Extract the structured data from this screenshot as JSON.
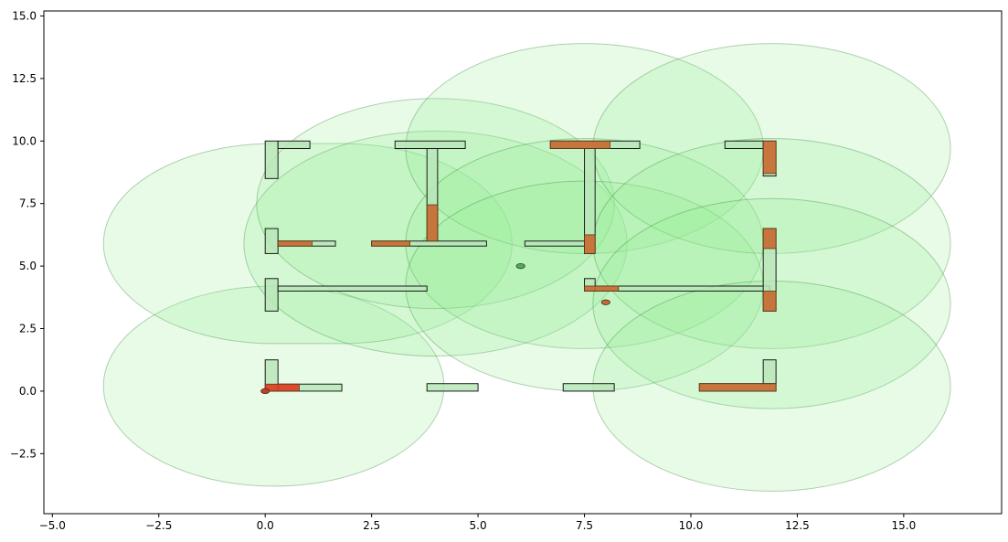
{
  "chart_data": {
    "type": "scatter",
    "title": "",
    "xlabel": "",
    "ylabel": "",
    "xlim": [
      -5.2,
      17.3
    ],
    "ylim": [
      -4.9,
      15.2
    ],
    "grid": false,
    "x_ticks": [
      -5.0,
      -2.5,
      0.0,
      2.5,
      5.0,
      7.5,
      10.0,
      12.5,
      15.0
    ],
    "y_ticks": [
      -2.5,
      0.0,
      2.5,
      5.0,
      7.5,
      10.0,
      12.5,
      15.0
    ],
    "x_tick_labels": [
      "−5.0",
      "−2.5",
      "0.0",
      "2.5",
      "5.0",
      "7.5",
      "10.0",
      "12.5",
      "15.0"
    ],
    "y_tick_labels": [
      "−2.5",
      "0.0",
      "2.5",
      "5.0",
      "7.5",
      "10.0",
      "12.5",
      "15.0"
    ],
    "colors": {
      "region_fill": "#90ee90",
      "region_stroke": "#2e7d32",
      "wall_fill": "#b8e6b8",
      "wall_stroke": "#1a1a1a",
      "hit_fill": "#c8692f",
      "hit_strong": "#e03a1e",
      "point_green": "#4caf50",
      "point_orange": "#c8692f",
      "point_red": "#d0391d"
    },
    "regions": [
      {
        "x0": 0.2,
        "x1": 0.2,
        "y0": 0.2,
        "y1": 0.2,
        "r": 4.0,
        "alpha": 0.22
      },
      {
        "x0": 0.2,
        "x1": 1.8,
        "y0": 5.9,
        "y1": 5.9,
        "r": 4.0,
        "alpha": 0.22
      },
      {
        "x0": 4.0,
        "x1": 4.0,
        "y0": 5.9,
        "y1": 5.9,
        "r": 4.5,
        "alpha": 0.22
      },
      {
        "x0": 4.0,
        "x1": 4.0,
        "y0": 7.5,
        "y1": 7.5,
        "r": 4.2,
        "alpha": 0.22
      },
      {
        "x0": 7.5,
        "x1": 7.5,
        "y0": 9.7,
        "y1": 9.7,
        "r": 4.2,
        "alpha": 0.22
      },
      {
        "x0": 7.5,
        "x1": 7.5,
        "y0": 5.9,
        "y1": 5.9,
        "r": 4.2,
        "alpha": 0.22
      },
      {
        "x0": 7.5,
        "x1": 7.5,
        "y0": 4.2,
        "y1": 4.2,
        "r": 4.2,
        "alpha": 0.22
      },
      {
        "x0": 11.9,
        "x1": 11.9,
        "y0": 9.7,
        "y1": 9.7,
        "r": 4.2,
        "alpha": 0.22
      },
      {
        "x0": 11.9,
        "x1": 11.9,
        "y0": 5.9,
        "y1": 5.9,
        "r": 4.2,
        "alpha": 0.22
      },
      {
        "x0": 11.9,
        "x1": 11.9,
        "y0": 3.5,
        "y1": 3.5,
        "r": 4.2,
        "alpha": 0.22
      },
      {
        "x0": 11.9,
        "x1": 11.9,
        "y0": 0.2,
        "y1": 0.2,
        "r": 4.2,
        "alpha": 0.22
      }
    ],
    "walls": [
      {
        "x": 0.0,
        "y": 8.5,
        "w": 0.3,
        "h": 1.5
      },
      {
        "x": 0.3,
        "y": 9.7,
        "w": 0.75,
        "h": 0.3
      },
      {
        "x": 0.0,
        "y": 5.5,
        "w": 0.3,
        "h": 1.0
      },
      {
        "x": 0.3,
        "y": 5.8,
        "w": 1.35,
        "h": 0.2
      },
      {
        "x": 0.0,
        "y": 3.2,
        "w": 0.3,
        "h": 1.3
      },
      {
        "x": 0.3,
        "y": 4.0,
        "w": 3.5,
        "h": 0.2
      },
      {
        "x": 0.0,
        "y": 0.0,
        "w": 0.3,
        "h": 1.25
      },
      {
        "x": 0.3,
        "y": 0.0,
        "w": 1.5,
        "h": 0.28
      },
      {
        "x": 3.05,
        "y": 9.7,
        "w": 1.65,
        "h": 0.3
      },
      {
        "x": 3.8,
        "y": 6.0,
        "w": 0.25,
        "h": 3.7
      },
      {
        "x": 2.5,
        "y": 5.8,
        "w": 2.7,
        "h": 0.2
      },
      {
        "x": 3.8,
        "y": 0.0,
        "w": 1.2,
        "h": 0.3
      },
      {
        "x": 6.7,
        "y": 9.7,
        "w": 2.1,
        "h": 0.3
      },
      {
        "x": 7.5,
        "y": 5.5,
        "w": 0.25,
        "h": 4.2
      },
      {
        "x": 6.1,
        "y": 5.8,
        "w": 1.4,
        "h": 0.2
      },
      {
        "x": 7.5,
        "y": 4.0,
        "w": 0.25,
        "h": 0.5
      },
      {
        "x": 7.75,
        "y": 4.0,
        "w": 4.1,
        "h": 0.2
      },
      {
        "x": 7.0,
        "y": 0.0,
        "w": 1.2,
        "h": 0.3
      },
      {
        "x": 10.8,
        "y": 9.7,
        "w": 0.9,
        "h": 0.3
      },
      {
        "x": 11.7,
        "y": 8.6,
        "w": 0.3,
        "h": 1.4
      },
      {
        "x": 11.7,
        "y": 3.2,
        "w": 0.3,
        "h": 3.3
      },
      {
        "x": 10.2,
        "y": 0.0,
        "w": 1.8,
        "h": 0.3
      },
      {
        "x": 11.7,
        "y": 0.3,
        "w": 0.3,
        "h": 0.95
      }
    ],
    "hits": [
      {
        "x": 0.3,
        "y": 5.8,
        "w": 0.8,
        "h": 0.2,
        "strong": false
      },
      {
        "x": 2.5,
        "y": 5.8,
        "w": 0.9,
        "h": 0.2,
        "strong": false
      },
      {
        "x": 3.8,
        "y": 6.0,
        "w": 0.25,
        "h": 1.45,
        "strong": false
      },
      {
        "x": 6.7,
        "y": 9.7,
        "w": 1.4,
        "h": 0.3,
        "strong": false
      },
      {
        "x": 7.5,
        "y": 5.5,
        "w": 0.25,
        "h": 0.75,
        "strong": false
      },
      {
        "x": 7.5,
        "y": 4.0,
        "w": 0.8,
        "h": 0.2,
        "strong": false
      },
      {
        "x": 11.7,
        "y": 8.7,
        "w": 0.3,
        "h": 1.3,
        "strong": false
      },
      {
        "x": 11.7,
        "y": 5.7,
        "w": 0.3,
        "h": 0.8,
        "strong": false
      },
      {
        "x": 11.7,
        "y": 3.2,
        "w": 0.3,
        "h": 0.8,
        "strong": false
      },
      {
        "x": 10.2,
        "y": 0.0,
        "w": 1.8,
        "h": 0.3,
        "strong": false
      },
      {
        "x": 0.0,
        "y": 0.0,
        "w": 0.8,
        "h": 0.28,
        "strong": true
      }
    ],
    "points": [
      {
        "x": 6.0,
        "y": 5.0,
        "rx": 0.1,
        "ry": 0.1,
        "color": "point_green"
      },
      {
        "x": 8.0,
        "y": 3.55,
        "rx": 0.1,
        "ry": 0.1,
        "color": "point_orange"
      },
      {
        "x": 0.0,
        "y": 0.0,
        "rx": 0.1,
        "ry": 0.1,
        "color": "point_red"
      }
    ]
  }
}
